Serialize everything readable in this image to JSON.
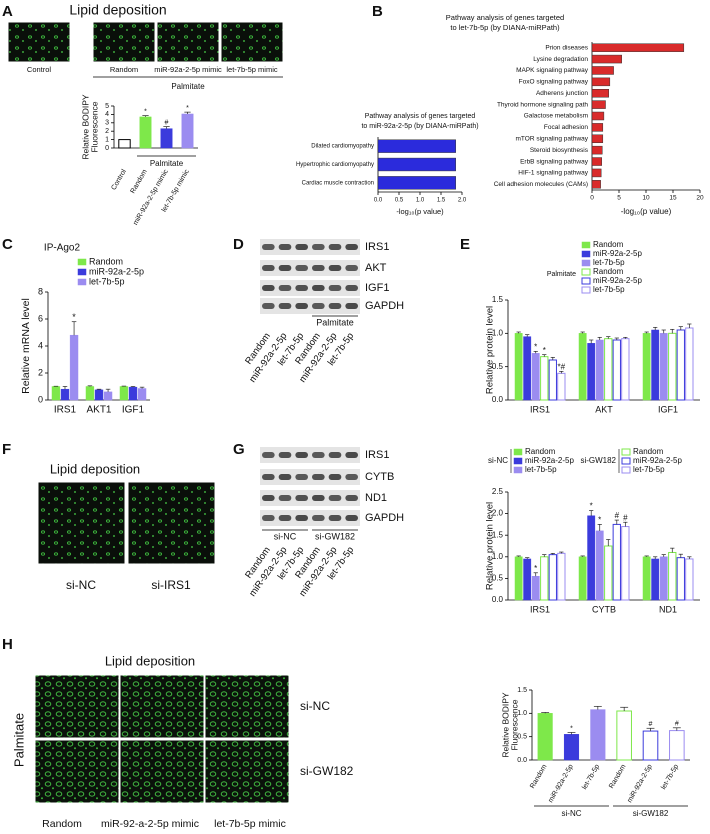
{
  "figure": {
    "A": {
      "letter": "A",
      "title": "Lipid deposition",
      "images": [
        "Control",
        "Random",
        "miR-92a-2-5p mimic",
        "let-7b-5p mimic"
      ],
      "group": "Palmitate"
    },
    "B": {
      "letter": "B"
    },
    "C": {
      "letter": "C"
    },
    "D": {
      "letter": "D",
      "rows": [
        "IRS1",
        "AKT",
        "IGF1",
        "GAPDH"
      ],
      "lanes": [
        "Random",
        "miR-92a-2-5p",
        "let-7b-5p",
        "Random",
        "miR-92a-2-5p",
        "let-7b-5p"
      ],
      "group": "Palmitate"
    },
    "E": {
      "letter": "E"
    },
    "F": {
      "letter": "F",
      "title": "Lipid deposition",
      "images": [
        "si-NC",
        "si-IRS1"
      ]
    },
    "G": {
      "letter": "G",
      "rows": [
        "IRS1",
        "CYTB",
        "ND1",
        "GAPDH"
      ],
      "lanes": [
        "Random",
        "miR-92a-2-5p",
        "let-7b-5p",
        "Random",
        "miR-92a-2-5p",
        "let-7b-5p"
      ],
      "groups": [
        "si-NC",
        "si-GW182"
      ]
    },
    "H": {
      "letter": "H",
      "title": "Lipid deposition",
      "side": "Palmitate",
      "rows": [
        "si-NC",
        "si-GW182"
      ],
      "columns": [
        "Random",
        "miR-92-a-2-5p mimic",
        "let-7b-5p mimic"
      ]
    }
  },
  "chart_data": [
    {
      "type": "bar",
      "ylabel": [
        "Relative BODIPY",
        "Fluorescence"
      ],
      "categories": [
        "Control",
        "Random",
        "miR-92a-2-5p mimic",
        "let-7b-5p mimic"
      ],
      "values": [
        1,
        3.7,
        2.3,
        4.05
      ],
      "errors": [
        0.03,
        0.15,
        0.25,
        0.22
      ],
      "colors": [
        "#000000",
        "#7ee84a",
        "#3b3bdc",
        "#9b8cf0"
      ],
      "hollow": [
        true,
        false,
        false,
        false
      ],
      "markers": [
        null,
        "*",
        "#",
        "*"
      ],
      "group_labels": [
        "Palmitate"
      ],
      "ylim": [
        0,
        5
      ],
      "yticks": [
        0,
        1,
        2,
        3,
        4,
        5
      ]
    },
    {
      "type": "hbar",
      "title": [
        "Pathway analysis of genes targeted",
        "to miR-92a-2-5p (by DIANA-miRPath)"
      ],
      "categories": [
        "Dilated cardiomyopathy",
        "Hypertrophic cardiomyopathy",
        "Cardiac muscle contraction"
      ],
      "values": [
        1.85,
        1.85,
        1.85
      ],
      "color": "#2b2bdc",
      "xlabel": "-log₁₀(p value)",
      "xlim": [
        0,
        2
      ],
      "xticks": [
        {
          "value": 0,
          "label": "0.0"
        },
        {
          "value": 0.5,
          "label": "0.5"
        },
        {
          "value": 1,
          "label": "1.0"
        },
        {
          "value": 1.5,
          "label": "1.5"
        },
        {
          "value": 2,
          "label": "2.0"
        }
      ]
    },
    {
      "type": "hbar",
      "title": [
        "Pathway analysis of genes targeted",
        "to let-7b-5p (by DIANA-miRPath)"
      ],
      "categories": [
        "Prion diseases",
        "Lysine degradation",
        "MAPK signaling pathway",
        "FoxO signaling pathway",
        "Adherens junction",
        "Thyroid hormone signaling path",
        "Galactose metabolism",
        "Focal adhesion",
        "mTOR signaling pathway",
        "Steroid biosynthesis",
        "ErbB signaling pathway",
        "HIF-1 signaling pathway",
        "Cell adhesion molecules (CAMs)"
      ],
      "values": [
        17,
        5.5,
        4,
        3.3,
        3.1,
        2.5,
        2.2,
        2,
        2,
        1.9,
        1.8,
        1.7,
        1.6
      ],
      "color": "#d92b2b",
      "xlabel": "-log₁₀(p value)",
      "xlim": [
        0,
        20
      ],
      "xticks": [
        0,
        5,
        10,
        15,
        20
      ]
    },
    {
      "type": "bar",
      "title": "IP-Ago2",
      "ylabel": "Relative mRNA level",
      "categories": [
        "IRS1",
        "AKT1",
        "IGF1"
      ],
      "series": [
        {
          "name": "Random",
          "color": "#7ee84a",
          "values": [
            1,
            1,
            1
          ],
          "errors": [
            0.02,
            0.05,
            0.03
          ]
        },
        {
          "name": "miR-92a-2-5p",
          "color": "#3b3bdc",
          "values": [
            0.8,
            0.75,
            0.95
          ],
          "errors": [
            0.2,
            0.05,
            0.05
          ]
        },
        {
          "name": "let-7b-5p",
          "color": "#9b8cf0",
          "values": [
            4.8,
            0.6,
            0.85
          ],
          "errors": [
            1.0,
            0.2,
            0.1
          ],
          "markers": [
            "*",
            null,
            null
          ]
        }
      ],
      "ylim": [
        0,
        8
      ],
      "yticks": [
        0,
        2,
        4,
        6,
        8
      ]
    },
    {
      "type": "bar",
      "ylabel": "Relative protein level",
      "legend_note": "Palmitate",
      "categories": [
        "IRS1",
        "AKT",
        "IGF1"
      ],
      "series": [
        {
          "name": "Random",
          "color": "#7ee84a",
          "values": [
            1.0,
            1.0,
            1.0
          ],
          "errors": [
            0.02,
            0.02,
            0.02
          ]
        },
        {
          "name": "miR-92a-2-5p",
          "color": "#3b3bdc",
          "values": [
            0.95,
            0.85,
            1.05
          ],
          "errors": [
            0.03,
            0.05,
            0.04
          ]
        },
        {
          "name": "let-7b-5p",
          "color": "#9b8cf0",
          "values": [
            0.7,
            0.9,
            1.0
          ],
          "errors": [
            0.03,
            0.04,
            0.05
          ],
          "markers": [
            "*",
            null,
            null
          ]
        },
        {
          "name": "Random",
          "color": "#7ee84a",
          "hollow": true,
          "values": [
            0.65,
            0.92,
            1.0
          ],
          "errors": [
            0.03,
            0.03,
            0.06
          ],
          "markers": [
            "*",
            null,
            null
          ]
        },
        {
          "name": "miR-92a-2-5p",
          "color": "#3b3bdc",
          "hollow": true,
          "values": [
            0.6,
            0.9,
            1.05
          ],
          "errors": [
            0.04,
            0.03,
            0.05
          ]
        },
        {
          "name": "let-7b-5p",
          "color": "#9b8cf0",
          "hollow": true,
          "values": [
            0.4,
            0.92,
            1.08
          ],
          "errors": [
            0.03,
            0.02,
            0.06
          ],
          "markers": [
            "*#",
            null,
            null
          ]
        }
      ],
      "ylim": [
        0,
        1.5
      ],
      "yticks": [
        {
          "value": 0,
          "label": "0.0"
        },
        {
          "value": 0.5,
          "label": "0.5"
        },
        {
          "value": 1,
          "label": "1.0"
        },
        {
          "value": 1.5,
          "label": "1.5"
        }
      ]
    },
    {
      "type": "bar",
      "ylabel": "Relative protein level",
      "legend_groups": [
        "si-NC",
        "si-GW182"
      ],
      "categories": [
        "IRS1",
        "CYTB",
        "ND1"
      ],
      "series": [
        {
          "name": "Random",
          "color": "#7ee84a",
          "values": [
            1.0,
            1.0,
            1.0
          ],
          "errors": [
            0.02,
            0.02,
            0.02
          ]
        },
        {
          "name": "miR-92a-2-5p",
          "color": "#3b3bdc",
          "values": [
            0.95,
            1.95,
            0.95
          ],
          "errors": [
            0.03,
            0.12,
            0.05
          ],
          "markers": [
            null,
            "*",
            null
          ]
        },
        {
          "name": "let-7b-5p",
          "color": "#9b8cf0",
          "values": [
            0.55,
            1.6,
            1.0
          ],
          "errors": [
            0.08,
            0.15,
            0.05
          ],
          "markers": [
            "*",
            "*",
            null
          ]
        },
        {
          "name": "Random",
          "color": "#7ee84a",
          "hollow": true,
          "values": [
            1.0,
            1.25,
            1.1
          ],
          "errors": [
            0.05,
            0.15,
            0.1
          ]
        },
        {
          "name": "miR-92a-2-5p",
          "color": "#3b3bdc",
          "hollow": true,
          "values": [
            1.05,
            1.75,
            0.98
          ],
          "errors": [
            0.03,
            0.1,
            0.08
          ],
          "markers": [
            null,
            "#",
            null
          ]
        },
        {
          "name": "let-7b-5p",
          "color": "#9b8cf0",
          "hollow": true,
          "values": [
            1.08,
            1.7,
            0.95
          ],
          "errors": [
            0.03,
            0.1,
            0.05
          ],
          "markers": [
            null,
            "#",
            null
          ]
        }
      ],
      "ylim": [
        0,
        2.5
      ],
      "yticks": [
        {
          "value": 0,
          "label": "0.0"
        },
        {
          "value": 0.5,
          "label": "0.5"
        },
        {
          "value": 1,
          "label": "1.0"
        },
        {
          "value": 1.5,
          "label": "1.5"
        },
        {
          "value": 2,
          "label": "2.0"
        },
        {
          "value": 2.5,
          "label": "2.5"
        }
      ]
    },
    {
      "type": "bar",
      "ylabel": [
        "Relative BODIPY",
        "Fluorescence"
      ],
      "categories": [
        "Random",
        "miR-92a-2-5p",
        "let-7b-5p",
        "Random",
        "miR-92a-2-5p",
        "let-7b-5p"
      ],
      "values": [
        1.0,
        0.55,
        1.08,
        1.05,
        0.62,
        0.63
      ],
      "errors": [
        0.02,
        0.04,
        0.07,
        0.08,
        0.06,
        0.06
      ],
      "colors": [
        "#7ee84a",
        "#3b3bdc",
        "#9b8cf0",
        "#7ee84a",
        "#3b3bdc",
        "#9b8cf0"
      ],
      "hollow": [
        false,
        false,
        false,
        true,
        true,
        true
      ],
      "markers": [
        null,
        "*",
        null,
        null,
        "#",
        "#"
      ],
      "group_labels": [
        "si-NC",
        "si-GW182"
      ],
      "ylim": [
        0,
        1.5
      ],
      "yticks": [
        {
          "value": 0,
          "label": "0.0"
        },
        {
          "value": 0.5,
          "label": "0.5"
        },
        {
          "value": 1,
          "label": "1.0"
        },
        {
          "value": 1.5,
          "label": "1.5"
        }
      ]
    }
  ]
}
